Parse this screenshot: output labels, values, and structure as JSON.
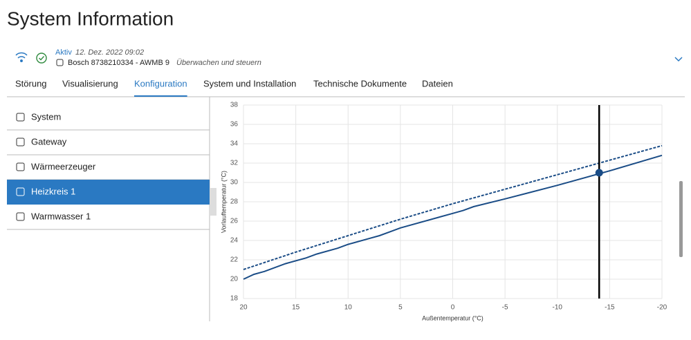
{
  "header": {
    "title": "System Information"
  },
  "status": {
    "state": "Aktiv",
    "date": "12. Dez. 2022 09:02",
    "device": "Bosch 8738210334 - AWMB 9",
    "mode": "Überwachen und steuern"
  },
  "tabs": [
    "Störung",
    "Visualisierung",
    "Konfiguration",
    "System und Installation",
    "Technische Dokumente",
    "Dateien"
  ],
  "active_tab": 2,
  "sidebar": [
    "System",
    "Gateway",
    "Wärmeerzeuger",
    "Heizkreis 1",
    "Warmwasser 1"
  ],
  "active_item": 3,
  "chart_data": {
    "type": "line",
    "x_label": "Außentemperatur (°C)",
    "y_label": "Vorlauftemperatur (°C)",
    "xlim": [
      20,
      -20
    ],
    "xticks": [
      20,
      15,
      10,
      5,
      0,
      -5,
      -10,
      -15,
      -20
    ],
    "ylim": [
      18,
      38
    ],
    "yticks": [
      18,
      20,
      22,
      24,
      26,
      28,
      30,
      32,
      34,
      36,
      38
    ],
    "grid": true,
    "series": [
      {
        "color": "#1a4c86",
        "dashed": false,
        "x": [
          20,
          19,
          18,
          16,
          14,
          13,
          11,
          10,
          8,
          7,
          6,
          5,
          0,
          -1,
          -2,
          -5,
          -10,
          -14,
          -15,
          -20
        ],
        "values": [
          20.0,
          20.5,
          20.8,
          21.6,
          22.2,
          22.6,
          23.2,
          23.6,
          24.2,
          24.5,
          24.9,
          25.3,
          26.8,
          27.1,
          27.5,
          28.3,
          29.7,
          30.9,
          31.2,
          32.8
        ]
      },
      {
        "color": "#1a4c86",
        "dashed": true,
        "x": [
          20,
          15,
          10,
          5,
          0,
          -5,
          -10,
          -15,
          -20
        ],
        "values": [
          21.0,
          22.8,
          24.5,
          26.2,
          27.8,
          29.3,
          30.8,
          32.3,
          33.8
        ]
      }
    ],
    "cursor_x": -14,
    "point": {
      "x": -14,
      "y": 31.0,
      "color": "#1a4c86"
    }
  }
}
